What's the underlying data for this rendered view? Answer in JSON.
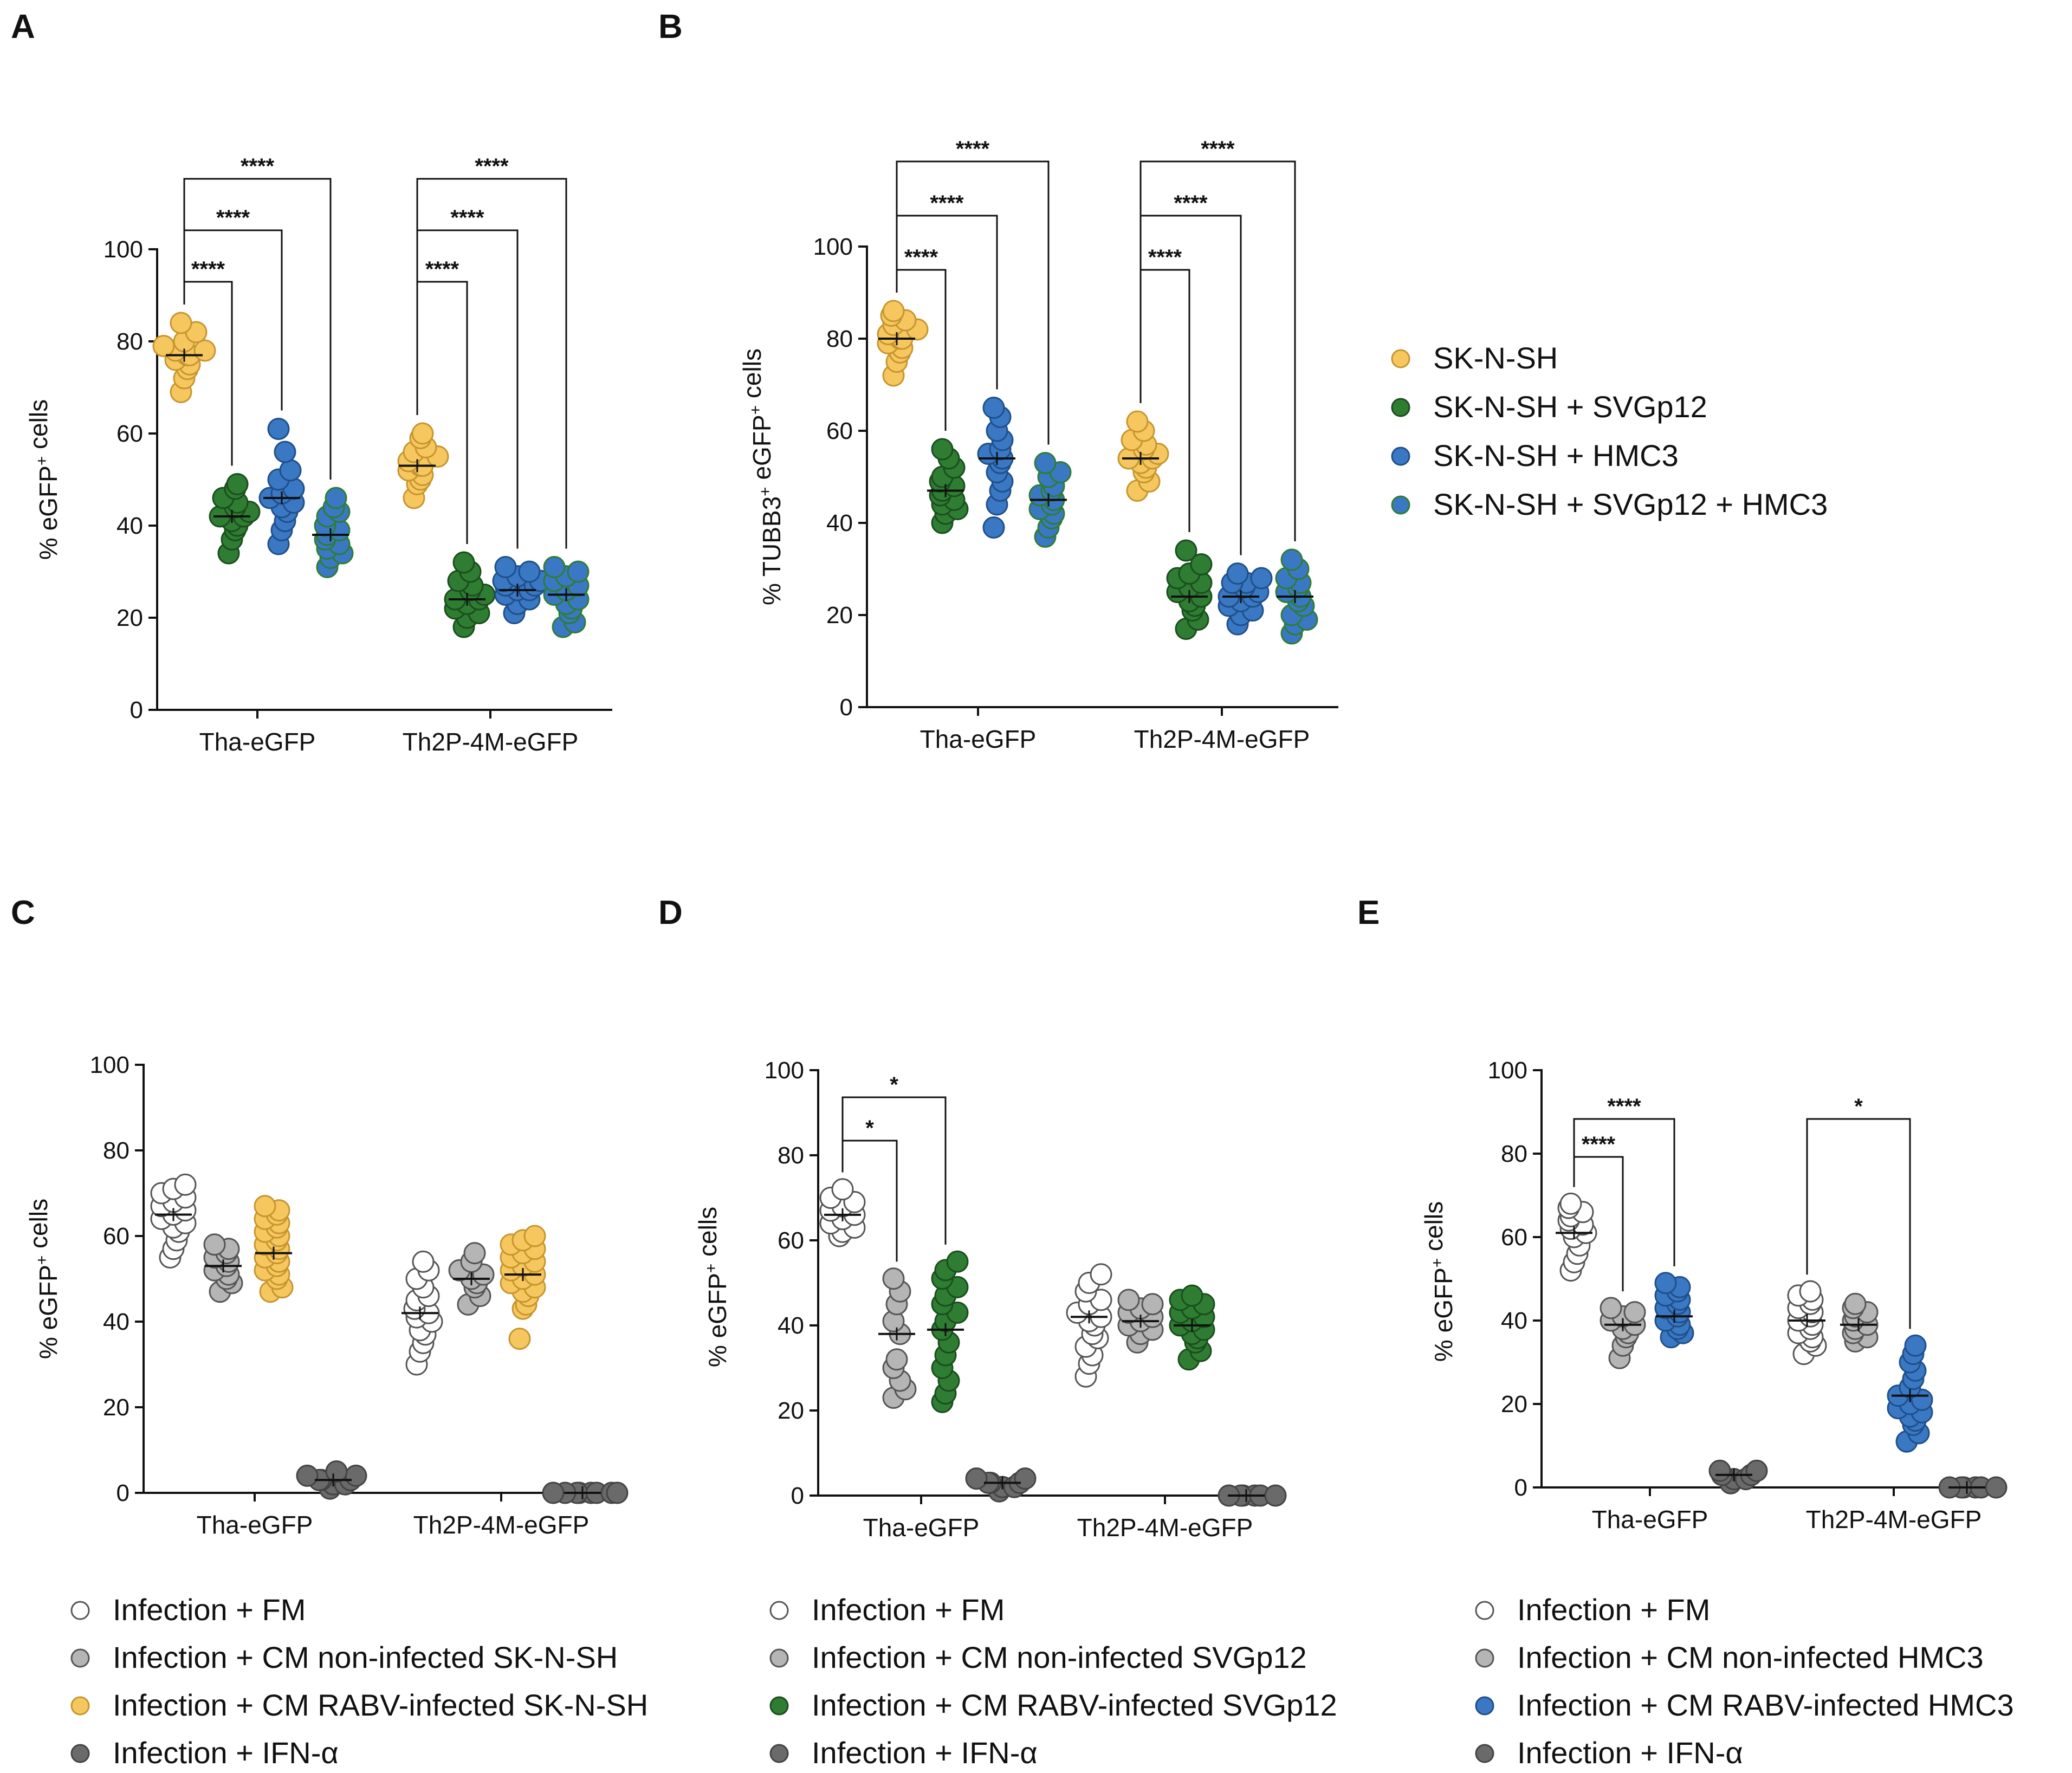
{
  "colors": {
    "yellow": "#f6c75f",
    "green": "#2e7d32",
    "blue": "#3a78c3",
    "white": "#ffffff",
    "lightgray": "#b5b5b5",
    "darkgray": "#6a6a6a",
    "black": "#111111"
  },
  "chart_data": [
    {
      "panel": "A",
      "type": "scatter",
      "ylabel": "% eGFP+ cells",
      "ylim": [
        0,
        100
      ],
      "yticks": [
        0,
        20,
        40,
        60,
        80,
        100
      ],
      "categories": [
        "Tha-eGFP",
        "Th2P-4M-eGFP"
      ],
      "series": [
        {
          "name": "SK-N-SH",
          "color": "yellow",
          "values": [
            [
              69,
              72,
              74,
              75,
              76,
              77,
              77,
              78,
              78,
              79,
              80,
              82,
              84
            ],
            [
              46,
              49,
              50,
              51,
              52,
              53,
              53,
              54,
              55,
              56,
              57,
              59,
              60
            ]
          ],
          "means": [
            77,
            53
          ]
        },
        {
          "name": "SK-N-SH + SVGp12",
          "color": "green",
          "values": [
            [
              34,
              37,
              39,
              40,
              41,
              42,
              42,
              43,
              44,
              45,
              46,
              48,
              49
            ],
            [
              18,
              20,
              21,
              22,
              23,
              24,
              24,
              25,
              26,
              27,
              28,
              30,
              32
            ]
          ],
          "means": [
            42,
            24
          ]
        },
        {
          "name": "SK-N-SH + HMC3",
          "color": "blue",
          "values": [
            [
              36,
              39,
              41,
              43,
              44,
              45,
              46,
              47,
              48,
              50,
              52,
              56,
              61
            ],
            [
              21,
              23,
              24,
              25,
              26,
              26,
              27,
              27,
              28,
              28,
              29,
              30,
              31
            ]
          ],
          "means": [
            46,
            26
          ]
        },
        {
          "name": "SK-N-SH + SVGp12 + HMC3",
          "color": "blue-green",
          "values": [
            [
              31,
              33,
              34,
              35,
              36,
              37,
              38,
              39,
              40,
              42,
              43,
              44,
              46
            ],
            [
              18,
              19,
              21,
              22,
              23,
              24,
              25,
              26,
              27,
              28,
              29,
              30,
              31
            ]
          ],
          "means": [
            38,
            25
          ]
        }
      ],
      "significance": [
        {
          "label": "****",
          "cat": 0,
          "from": 0,
          "to": 1
        },
        {
          "label": "****",
          "cat": 0,
          "from": 0,
          "to": 2
        },
        {
          "label": "****",
          "cat": 0,
          "from": 0,
          "to": 3
        },
        {
          "label": "****",
          "cat": 1,
          "from": 0,
          "to": 1
        },
        {
          "label": "****",
          "cat": 1,
          "from": 0,
          "to": 2
        },
        {
          "label": "****",
          "cat": 1,
          "from": 0,
          "to": 3
        }
      ]
    },
    {
      "panel": "B",
      "type": "scatter",
      "ylabel": "% TUBB3+ eGFP+ cells",
      "ylim": [
        0,
        100
      ],
      "yticks": [
        0,
        20,
        40,
        60,
        80,
        100
      ],
      "categories": [
        "Tha-eGFP",
        "Th2P-4M-eGFP"
      ],
      "series": [
        {
          "name": "SK-N-SH",
          "color": "yellow",
          "values": [
            [
              72,
              75,
              77,
              78,
              79,
              80,
              80,
              81,
              82,
              83,
              84,
              85,
              86
            ],
            [
              47,
              49,
              51,
              52,
              53,
              54,
              54,
              55,
              56,
              57,
              58,
              60,
              62
            ]
          ],
          "means": [
            80,
            54
          ]
        },
        {
          "name": "SK-N-SH + SVGp12",
          "color": "green",
          "values": [
            [
              40,
              42,
              43,
              44,
              45,
              46,
              47,
              48,
              49,
              50,
              52,
              54,
              56
            ],
            [
              17,
              19,
              21,
              22,
              23,
              24,
              25,
              26,
              27,
              28,
              29,
              31,
              34
            ]
          ],
          "means": [
            47,
            24
          ]
        },
        {
          "name": "SK-N-SH + HMC3",
          "color": "blue",
          "values": [
            [
              39,
              44,
              47,
              49,
              51,
              53,
              54,
              55,
              56,
              58,
              60,
              63,
              65
            ],
            [
              18,
              20,
              21,
              22,
              23,
              24,
              24,
              25,
              26,
              27,
              27,
              28,
              29
            ]
          ],
          "means": [
            54,
            24
          ]
        },
        {
          "name": "SK-N-SH + SVGp12 + HMC3",
          "color": "blue-green",
          "values": [
            [
              37,
              39,
              41,
              42,
              43,
              44,
              45,
              46,
              47,
              48,
              50,
              51,
              53
            ],
            [
              16,
              18,
              19,
              20,
              22,
              23,
              24,
              25,
              26,
              27,
              28,
              30,
              32
            ]
          ],
          "means": [
            45,
            24
          ]
        }
      ],
      "significance": [
        {
          "label": "****",
          "cat": 0,
          "from": 0,
          "to": 1
        },
        {
          "label": "****",
          "cat": 0,
          "from": 0,
          "to": 2
        },
        {
          "label": "****",
          "cat": 0,
          "from": 0,
          "to": 3
        },
        {
          "label": "****",
          "cat": 1,
          "from": 0,
          "to": 1
        },
        {
          "label": "****",
          "cat": 1,
          "from": 0,
          "to": 2
        },
        {
          "label": "****",
          "cat": 1,
          "from": 0,
          "to": 3
        }
      ]
    },
    {
      "panel": "C",
      "type": "scatter",
      "ylabel": "% eGFP+ cells",
      "ylim": [
        0,
        100
      ],
      "yticks": [
        0,
        20,
        40,
        60,
        80,
        100
      ],
      "categories": [
        "Tha-eGFP",
        "Th2P-4M-eGFP"
      ],
      "series": [
        {
          "name": "Infection + FM",
          "color": "white",
          "values": [
            [
              55,
              57,
              59,
              61,
              62,
              63,
              64,
              65,
              66,
              67,
              68,
              69,
              70,
              71,
              72
            ],
            [
              30,
              33,
              35,
              37,
              38,
              40,
              41,
              42,
              43,
              45,
              46,
              48,
              50,
              52,
              54
            ]
          ],
          "means": [
            65,
            42
          ]
        },
        {
          "name": "Infection + CM non-infected SK-N-SH",
          "color": "lightgray",
          "values": [
            [
              47,
              49,
              50,
              51,
              52,
              53,
              54,
              55,
              56,
              57,
              58
            ],
            [
              44,
              46,
              48,
              49,
              50,
              51,
              52,
              54,
              56
            ]
          ],
          "means": [
            53,
            50
          ]
        },
        {
          "name": "Infection + CM RABV-infected SK-N-SH",
          "color": "yellow",
          "values": [
            [
              47,
              48,
              50,
              51,
              52,
              53,
              54,
              55,
              56,
              57,
              58,
              59,
              60,
              61,
              62,
              63,
              64,
              65,
              66,
              67
            ],
            [
              36,
              43,
              44,
              46,
              47,
              48,
              49,
              50,
              51,
              52,
              53,
              54,
              55,
              56,
              57,
              58,
              59,
              60
            ]
          ],
          "means": [
            56,
            51
          ]
        },
        {
          "name": "Infection + IFN-α",
          "color": "darkgray",
          "values": [
            [
              1,
              2,
              2,
              3,
              3,
              3,
              4,
              4,
              5
            ],
            [
              0,
              0,
              0,
              0,
              0,
              0,
              0,
              0
            ]
          ],
          "means": [
            3,
            0
          ]
        }
      ],
      "significance": []
    },
    {
      "panel": "D",
      "type": "scatter",
      "ylabel": "% eGFP+ cells",
      "ylim": [
        0,
        100
      ],
      "yticks": [
        0,
        20,
        40,
        60,
        80,
        100
      ],
      "categories": [
        "Tha-eGFP",
        "Th2P-4M-eGFP"
      ],
      "series": [
        {
          "name": "Infection + FM",
          "color": "white",
          "values": [
            [
              61,
              62,
              63,
              64,
              65,
              66,
              67,
              68,
              69,
              70,
              72
            ],
            [
              28,
              31,
              33,
              35,
              37,
              38,
              40,
              41,
              42,
              43,
              45,
              46,
              48,
              50,
              52
            ]
          ],
          "means": [
            66,
            42
          ]
        },
        {
          "name": "Infection + CM non-infected SVGp12",
          "color": "lightgray",
          "values": [
            [
              23,
              25,
              27,
              30,
              32,
              38,
              41,
              45,
              48,
              51
            ],
            [
              36,
              38,
              39,
              40,
              41,
              42,
              43,
              44,
              45,
              46
            ]
          ],
          "means": [
            38,
            41
          ]
        },
        {
          "name": "Infection + CM RABV-infected SVGp12",
          "color": "green",
          "values": [
            [
              22,
              24,
              27,
              30,
              33,
              36,
              39,
              41,
              43,
              45,
              47,
              49,
              51,
              53,
              55
            ],
            [
              32,
              34,
              36,
              37,
              38,
              39,
              40,
              41,
              42,
              43,
              44,
              45,
              46,
              47
            ]
          ],
          "means": [
            39,
            40
          ]
        },
        {
          "name": "Infection + IFN-α",
          "color": "darkgray",
          "values": [
            [
              1,
              2,
              2,
              3,
              3,
              3,
              4,
              4
            ],
            [
              0,
              0,
              0,
              0,
              0,
              0
            ]
          ],
          "means": [
            3,
            0
          ]
        }
      ],
      "significance": [
        {
          "label": "*",
          "cat": 0,
          "from": 0,
          "to": 1
        },
        {
          "label": "*",
          "cat": 0,
          "from": 0,
          "to": 2
        }
      ]
    },
    {
      "panel": "E",
      "type": "scatter",
      "ylabel": "% eGFP+ cells",
      "ylim": [
        0,
        100
      ],
      "yticks": [
        0,
        20,
        40,
        60,
        80,
        100
      ],
      "categories": [
        "Tha-eGFP",
        "Th2P-4M-eGFP"
      ],
      "series": [
        {
          "name": "Infection + FM",
          "color": "white",
          "values": [
            [
              52,
              54,
              56,
              58,
              60,
              61,
              62,
              63,
              64,
              65,
              66,
              67,
              68
            ],
            [
              32,
              34,
              35,
              36,
              37,
              38,
              39,
              40,
              41,
              42,
              43,
              44,
              45,
              46,
              47
            ]
          ],
          "means": [
            61,
            40
          ]
        },
        {
          "name": "Infection + CM non-infected HMC3",
          "color": "lightgray",
          "values": [
            [
              31,
              34,
              36,
              37,
              38,
              39,
              40,
              41,
              42,
              43
            ],
            [
              35,
              36,
              37,
              38,
              39,
              40,
              41,
              42,
              43,
              44
            ]
          ],
          "means": [
            39,
            39
          ]
        },
        {
          "name": "Infection + CM RABV-infected HMC3",
          "color": "blue",
          "values": [
            [
              36,
              37,
              38,
              39,
              40,
              41,
              42,
              43,
              44,
              45,
              46,
              47,
              48,
              49
            ],
            [
              11,
              13,
              15,
              16,
              17,
              18,
              19,
              20,
              21,
              22,
              24,
              26,
              28,
              30,
              32,
              34
            ]
          ],
          "means": [
            41,
            22
          ]
        },
        {
          "name": "Infection + IFN-α",
          "color": "darkgray",
          "values": [
            [
              1,
              2,
              2,
              3,
              3,
              4,
              4
            ],
            [
              0,
              0,
              0,
              0,
              0,
              0
            ]
          ],
          "means": [
            3,
            0
          ]
        }
      ],
      "significance": [
        {
          "label": "****",
          "cat": 0,
          "from": 0,
          "to": 1
        },
        {
          "label": "****",
          "cat": 0,
          "from": 0,
          "to": 2
        },
        {
          "label": "*",
          "cat": 1,
          "from": 0,
          "to": 2
        }
      ]
    }
  ],
  "legend_AB": [
    "SK-N-SH",
    "SK-N-SH + SVGp12",
    "SK-N-SH + HMC3",
    "SK-N-SH + SVGp12 + HMC3"
  ],
  "legend_C": [
    "Infection + FM",
    "Infection + CM non-infected SK-N-SH",
    "Infection + CM RABV-infected SK-N-SH",
    "Infection + IFN-α"
  ],
  "legend_D": [
    "Infection + FM",
    "Infection + CM non-infected SVGp12",
    "Infection + CM RABV-infected SVGp12",
    "Infection + IFN-α"
  ],
  "legend_E": [
    "Infection + FM",
    "Infection + CM non-infected HMC3",
    "Infection + CM RABV-infected HMC3",
    "Infection + IFN-α"
  ]
}
